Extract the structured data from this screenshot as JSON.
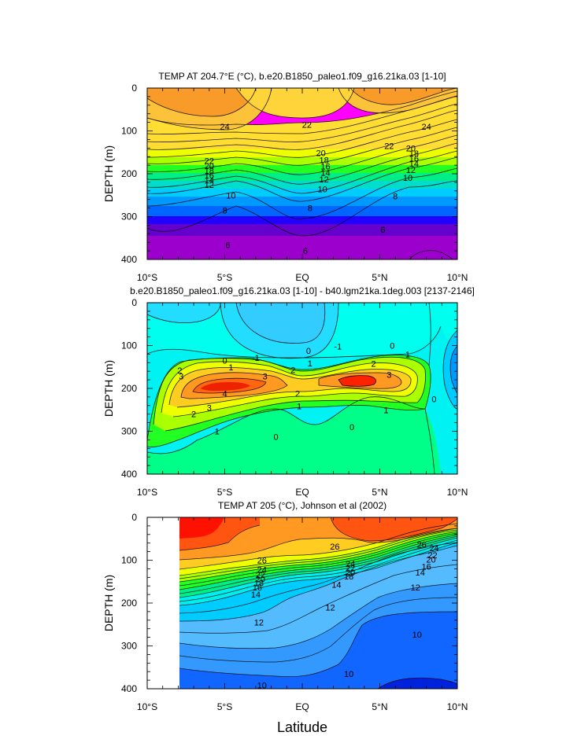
{
  "chart_data": [
    {
      "type": "heatmap",
      "title": "TEMP AT 204.7°E (°C), b.e20.B1850_paleo1.f09_g16.21ka.03 [1-10]",
      "ylabel": "DEPTH (m)",
      "xlabel": "",
      "x_tick_labels": [
        "10°S",
        "5°S",
        "EQ",
        "5°N",
        "10°N"
      ],
      "x_ticks": [
        -10,
        -5,
        0,
        5,
        10
      ],
      "y_tick_labels": [
        "0",
        "100",
        "200",
        "300",
        "400"
      ],
      "y_ticks": [
        0,
        100,
        200,
        300,
        400
      ],
      "xlim": [
        -10,
        10
      ],
      "ylim": [
        0,
        400
      ],
      "y_inverted": true,
      "contour_interval": 1,
      "contour_labels": [
        {
          "text": "24",
          "lat": -5.0,
          "depth": 90
        },
        {
          "text": "22",
          "lat": 0.3,
          "depth": 85
        },
        {
          "text": "24",
          "lat": 8.0,
          "depth": 90
        },
        {
          "text": "22",
          "lat": 5.6,
          "depth": 135
        },
        {
          "text": "22",
          "lat": -6.0,
          "depth": 170
        },
        {
          "text": "20",
          "lat": -6.0,
          "depth": 182
        },
        {
          "text": "18",
          "lat": -6.0,
          "depth": 193
        },
        {
          "text": "16",
          "lat": -6.0,
          "depth": 204
        },
        {
          "text": "14",
          "lat": -6.0,
          "depth": 215
        },
        {
          "text": "12",
          "lat": -6.0,
          "depth": 226
        },
        {
          "text": "10",
          "lat": -4.6,
          "depth": 250
        },
        {
          "text": "8",
          "lat": -5.0,
          "depth": 285
        },
        {
          "text": "20",
          "lat": 1.2,
          "depth": 151
        },
        {
          "text": "18",
          "lat": 1.4,
          "depth": 168
        },
        {
          "text": "16",
          "lat": 1.5,
          "depth": 183
        },
        {
          "text": "14",
          "lat": 1.5,
          "depth": 197
        },
        {
          "text": "12",
          "lat": 1.4,
          "depth": 213
        },
        {
          "text": "10",
          "lat": 1.3,
          "depth": 236
        },
        {
          "text": "8",
          "lat": 0.5,
          "depth": 280
        },
        {
          "text": "8",
          "lat": 6.0,
          "depth": 252
        },
        {
          "text": "6",
          "lat": 5.2,
          "depth": 330
        },
        {
          "text": "6",
          "lat": -4.8,
          "depth": 366
        },
        {
          "text": "6",
          "lat": 0.2,
          "depth": 380
        },
        {
          "text": "20",
          "lat": 7.0,
          "depth": 140
        },
        {
          "text": "18",
          "lat": 7.2,
          "depth": 152
        },
        {
          "text": "16",
          "lat": 7.2,
          "depth": 164
        },
        {
          "text": "14",
          "lat": 7.2,
          "depth": 176
        },
        {
          "text": "12",
          "lat": 7.0,
          "depth": 191
        },
        {
          "text": "10",
          "lat": 6.8,
          "depth": 209
        }
      ]
    },
    {
      "type": "heatmap",
      "title": "b.e20.B1850_paleo1.f09_g16.21ka.03 [1-10] - b40.lgm21ka.1deg.003 [2137-2146]",
      "ylabel": "DEPTH (m)",
      "xlabel": "",
      "x_tick_labels": [
        "10°S",
        "5°S",
        "EQ",
        "5°N",
        "10°N"
      ],
      "x_ticks": [
        -10,
        -5,
        0,
        5,
        10
      ],
      "y_tick_labels": [
        "0",
        "100",
        "200",
        "300",
        "400"
      ],
      "y_ticks": [
        0,
        100,
        200,
        300,
        400
      ],
      "xlim": [
        -10,
        10
      ],
      "ylim": [
        0,
        400
      ],
      "y_inverted": true,
      "contour_interval": 0.5,
      "contour_labels": [
        {
          "text": "0",
          "lat": -5.0,
          "depth": 135
        },
        {
          "text": "-1",
          "lat": -3.0,
          "depth": 128
        },
        {
          "text": "0",
          "lat": 0.4,
          "depth": 112
        },
        {
          "text": "-1",
          "lat": 2.3,
          "depth": 102
        },
        {
          "text": "0",
          "lat": 5.8,
          "depth": 100
        },
        {
          "text": "1",
          "lat": -4.6,
          "depth": 150
        },
        {
          "text": "1",
          "lat": 0.5,
          "depth": 141
        },
        {
          "text": "1",
          "lat": 6.8,
          "depth": 120
        },
        {
          "text": "2",
          "lat": -7.9,
          "depth": 158
        },
        {
          "text": "2",
          "lat": -0.6,
          "depth": 157
        },
        {
          "text": "2",
          "lat": 4.6,
          "depth": 142
        },
        {
          "text": "3",
          "lat": -7.8,
          "depth": 172
        },
        {
          "text": "3",
          "lat": -2.4,
          "depth": 172
        },
        {
          "text": "3",
          "lat": 5.6,
          "depth": 168
        },
        {
          "text": "4",
          "lat": -5.0,
          "depth": 212
        },
        {
          "text": "2",
          "lat": -0.3,
          "depth": 212
        },
        {
          "text": "3",
          "lat": -6.0,
          "depth": 245
        },
        {
          "text": "2",
          "lat": -7.0,
          "depth": 260
        },
        {
          "text": "1",
          "lat": -0.2,
          "depth": 241
        },
        {
          "text": "1",
          "lat": 5.4,
          "depth": 250
        },
        {
          "text": "1",
          "lat": -5.5,
          "depth": 300
        },
        {
          "text": "0",
          "lat": -1.7,
          "depth": 313
        },
        {
          "text": "0",
          "lat": 3.2,
          "depth": 290
        },
        {
          "text": "0",
          "lat": 8.5,
          "depth": 225
        }
      ]
    },
    {
      "type": "heatmap",
      "title": "TEMP AT 205 (°C), Johnson et al (2002)",
      "ylabel": "DEPTH (m)",
      "xlabel": "Latitude",
      "x_tick_labels": [
        "10°S",
        "5°S",
        "EQ",
        "5°N",
        "10°N"
      ],
      "x_ticks": [
        -10,
        -5,
        0,
        5,
        10
      ],
      "y_tick_labels": [
        "0",
        "100",
        "200",
        "300",
        "400"
      ],
      "y_ticks": [
        0,
        100,
        200,
        300,
        400
      ],
      "xlim": [
        -10,
        10
      ],
      "ylim": [
        0,
        400
      ],
      "y_inverted": true,
      "data_lat_range": [
        -8,
        10
      ],
      "contour_interval": 1,
      "contour_labels": [
        {
          "text": "26",
          "lat": 2.1,
          "depth": 68
        },
        {
          "text": "26",
          "lat": -2.6,
          "depth": 100
        },
        {
          "text": "26",
          "lat": 7.7,
          "depth": 63
        },
        {
          "text": "24",
          "lat": 8.5,
          "depth": 72
        },
        {
          "text": "24",
          "lat": -2.6,
          "depth": 122
        },
        {
          "text": "24",
          "lat": 3.1,
          "depth": 108
        },
        {
          "text": "22",
          "lat": -2.7,
          "depth": 134
        },
        {
          "text": "22",
          "lat": 3.1,
          "depth": 118
        },
        {
          "text": "20",
          "lat": -2.7,
          "depth": 144
        },
        {
          "text": "20",
          "lat": 3.1,
          "depth": 128
        },
        {
          "text": "18",
          "lat": -2.8,
          "depth": 153
        },
        {
          "text": "18",
          "lat": 3.0,
          "depth": 138
        },
        {
          "text": "16",
          "lat": -2.9,
          "depth": 163
        },
        {
          "text": "14",
          "lat": -3.0,
          "depth": 180
        },
        {
          "text": "14",
          "lat": 2.2,
          "depth": 157
        },
        {
          "text": "14",
          "lat": 7.6,
          "depth": 128
        },
        {
          "text": "16",
          "lat": 8.0,
          "depth": 115
        },
        {
          "text": "20",
          "lat": 8.3,
          "depth": 98
        },
        {
          "text": "22",
          "lat": 8.4,
          "depth": 88
        },
        {
          "text": "12",
          "lat": 7.3,
          "depth": 163
        },
        {
          "text": "12",
          "lat": 1.8,
          "depth": 210
        },
        {
          "text": "12",
          "lat": -2.8,
          "depth": 245
        },
        {
          "text": "10",
          "lat": 7.4,
          "depth": 273
        },
        {
          "text": "10",
          "lat": 3.0,
          "depth": 365
        },
        {
          "text": "10",
          "lat": -2.6,
          "depth": 392
        }
      ]
    }
  ]
}
